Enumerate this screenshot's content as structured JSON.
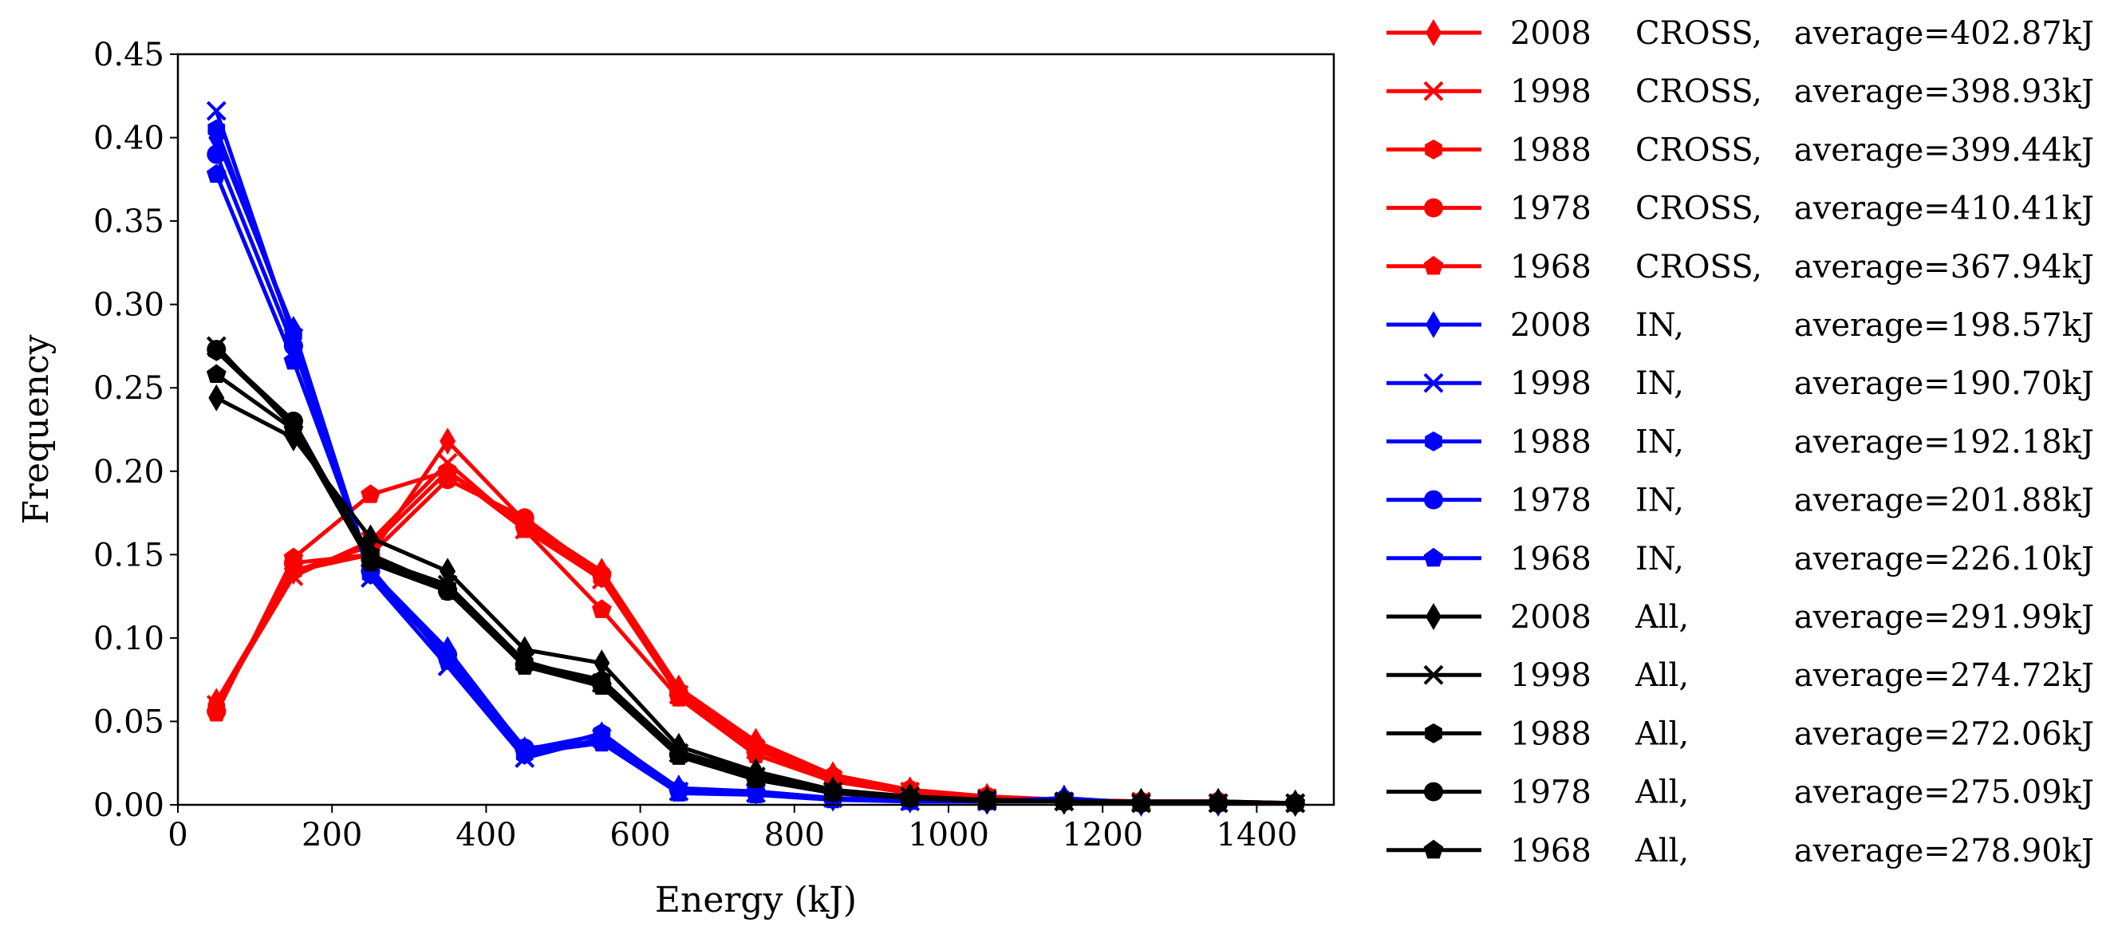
{
  "chart_data": {
    "type": "line",
    "title": "",
    "xlabel": "Energy (kJ)",
    "ylabel": "Frequency",
    "xlim": [
      0,
      1500
    ],
    "ylim": [
      0,
      0.45
    ],
    "xticks": [
      0,
      200,
      400,
      600,
      800,
      1000,
      1200,
      1400
    ],
    "xtick_labels": [
      "0",
      "200",
      "400",
      "600",
      "800",
      "1000",
      "1200",
      "1400"
    ],
    "yticks": [
      0,
      0.05,
      0.1,
      0.15,
      0.2,
      0.25,
      0.3,
      0.35,
      0.4,
      0.45
    ],
    "ytick_labels": [
      "0.00",
      "0.05",
      "0.10",
      "0.15",
      "0.20",
      "0.25",
      "0.30",
      "0.35",
      "0.40",
      "0.45"
    ],
    "grid": false,
    "legend_position": "right-outside",
    "x": [
      50,
      150,
      250,
      350,
      450,
      550,
      650,
      750,
      850,
      950,
      1050,
      1150,
      1250,
      1350,
      1450
    ],
    "series": [
      {
        "name": "2008 CROSS",
        "year": "2008",
        "group": "CROSS,",
        "average": "average=402.87kJ",
        "color": "#ff0000",
        "marker": "diamond",
        "values": [
          0.062,
          0.14,
          0.15,
          0.218,
          0.17,
          0.14,
          0.07,
          0.038,
          0.018,
          0.009,
          0.005,
          0.003,
          0.002,
          0.002,
          0.001
        ]
      },
      {
        "name": "1998 CROSS",
        "year": "1998",
        "group": "CROSS,",
        "average": "average=398.93kJ",
        "color": "#ff0000",
        "marker": "x",
        "values": [
          0.06,
          0.137,
          0.158,
          0.205,
          0.165,
          0.135,
          0.066,
          0.033,
          0.015,
          0.008,
          0.004,
          0.002,
          0.002,
          0.001,
          0.001
        ]
      },
      {
        "name": "1988 CROSS",
        "year": "1988",
        "group": "CROSS,",
        "average": "average=399.44kJ",
        "color": "#ff0000",
        "marker": "hexagon",
        "values": [
          0.058,
          0.14,
          0.155,
          0.2,
          0.168,
          0.136,
          0.068,
          0.036,
          0.016,
          0.008,
          0.004,
          0.003,
          0.002,
          0.001,
          0.001
        ]
      },
      {
        "name": "1978 CROSS",
        "year": "1978",
        "group": "CROSS,",
        "average": "average=410.41kJ",
        "color": "#ff0000",
        "marker": "circle",
        "values": [
          0.056,
          0.145,
          0.15,
          0.195,
          0.172,
          0.138,
          0.067,
          0.035,
          0.017,
          0.009,
          0.005,
          0.003,
          0.002,
          0.002,
          0.001
        ]
      },
      {
        "name": "1968 CROSS",
        "year": "1968",
        "group": "CROSS,",
        "average": "average=367.94kJ",
        "color": "#ff0000",
        "marker": "pentagon",
        "values": [
          0.055,
          0.148,
          0.186,
          0.2,
          0.165,
          0.117,
          0.064,
          0.03,
          0.014,
          0.007,
          0.004,
          0.002,
          0.001,
          0.001,
          0.001
        ]
      },
      {
        "name": "2008 IN",
        "year": "2008",
        "group": "IN,",
        "average": "average=198.57kJ",
        "color": "#0000ff",
        "marker": "diamond",
        "values": [
          0.4,
          0.285,
          0.14,
          0.093,
          0.033,
          0.042,
          0.01,
          0.008,
          0.004,
          0.003,
          0.002,
          0.004,
          0.001,
          0.001,
          0.001
        ]
      },
      {
        "name": "1998 IN",
        "year": "1998",
        "group": "IN,",
        "average": "average=190.70kJ",
        "color": "#0000ff",
        "marker": "x",
        "values": [
          0.416,
          0.28,
          0.136,
          0.083,
          0.028,
          0.04,
          0.008,
          0.007,
          0.004,
          0.002,
          0.002,
          0.002,
          0.001,
          0.001,
          0.001
        ]
      },
      {
        "name": "1988 IN",
        "year": "1988",
        "group": "IN,",
        "average": "average=192.18kJ",
        "color": "#0000ff",
        "marker": "hexagon",
        "values": [
          0.405,
          0.282,
          0.138,
          0.088,
          0.03,
          0.043,
          0.009,
          0.008,
          0.004,
          0.002,
          0.002,
          0.003,
          0.001,
          0.001,
          0.001
        ]
      },
      {
        "name": "1978 IN",
        "year": "1978",
        "group": "IN,",
        "average": "average=201.88kJ",
        "color": "#0000ff",
        "marker": "circle",
        "values": [
          0.39,
          0.275,
          0.14,
          0.09,
          0.034,
          0.038,
          0.009,
          0.008,
          0.004,
          0.003,
          0.002,
          0.003,
          0.001,
          0.001,
          0.001
        ]
      },
      {
        "name": "1968 IN",
        "year": "1968",
        "group": "IN,",
        "average": "average=226.10kJ",
        "color": "#0000ff",
        "marker": "pentagon",
        "values": [
          0.378,
          0.266,
          0.142,
          0.086,
          0.031,
          0.037,
          0.007,
          0.006,
          0.003,
          0.002,
          0.002,
          0.004,
          0.001,
          0.001,
          0.001
        ]
      },
      {
        "name": "2008 All",
        "year": "2008",
        "group": "All,",
        "average": "average=291.99kJ",
        "color": "#000000",
        "marker": "diamond",
        "values": [
          0.244,
          0.22,
          0.16,
          0.14,
          0.093,
          0.085,
          0.035,
          0.02,
          0.009,
          0.005,
          0.003,
          0.002,
          0.002,
          0.002,
          0.001
        ]
      },
      {
        "name": "1998 All",
        "year": "1998",
        "group": "All,",
        "average": "average=274.72kJ",
        "color": "#000000",
        "marker": "x",
        "values": [
          0.275,
          0.226,
          0.148,
          0.132,
          0.086,
          0.073,
          0.031,
          0.017,
          0.008,
          0.005,
          0.003,
          0.002,
          0.001,
          0.001,
          0.001
        ]
      },
      {
        "name": "1988 All",
        "year": "1988",
        "group": "All,",
        "average": "average=272.06kJ",
        "color": "#000000",
        "marker": "hexagon",
        "values": [
          0.272,
          0.228,
          0.15,
          0.13,
          0.085,
          0.075,
          0.032,
          0.018,
          0.008,
          0.004,
          0.003,
          0.002,
          0.001,
          0.001,
          0.001
        ]
      },
      {
        "name": "1978 All",
        "year": "1978",
        "group": "All,",
        "average": "average=275.09kJ",
        "color": "#000000",
        "marker": "circle",
        "values": [
          0.273,
          0.23,
          0.147,
          0.128,
          0.084,
          0.072,
          0.03,
          0.016,
          0.008,
          0.004,
          0.003,
          0.002,
          0.001,
          0.001,
          0.001
        ]
      },
      {
        "name": "1968 All",
        "year": "1968",
        "group": "All,",
        "average": "average=278.90kJ",
        "color": "#000000",
        "marker": "pentagon",
        "values": [
          0.258,
          0.225,
          0.145,
          0.128,
          0.083,
          0.071,
          0.029,
          0.015,
          0.007,
          0.004,
          0.002,
          0.002,
          0.001,
          0.001,
          0.001
        ]
      }
    ]
  }
}
